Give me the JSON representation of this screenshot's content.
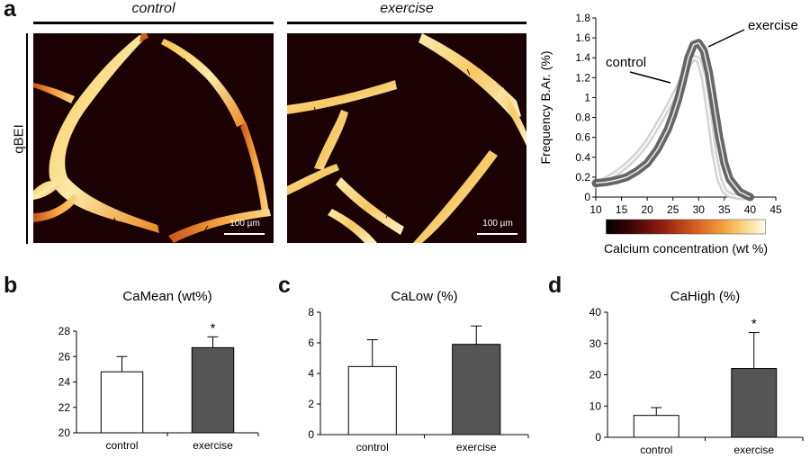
{
  "figure": {
    "panel_a": {
      "letter": "a",
      "row_label": "qBEI",
      "image_titles": [
        "control",
        "exercise"
      ],
      "scalebar_label": "100 µm"
    },
    "panel_b": {
      "letter": "b"
    },
    "panel_c": {
      "letter": "c"
    },
    "panel_d": {
      "letter": "d"
    }
  },
  "colors": {
    "control_bar": "#ffffff",
    "exercise_bar": "#555555",
    "bone_dark": "#1b0104"
  },
  "chart_data": [
    {
      "type": "line",
      "xlabel": "Calcium concentration (wt %)",
      "ylabel": "Frequency B.Ar. (%)",
      "xlim": [
        10,
        45
      ],
      "ylim": [
        0,
        1.8
      ],
      "x_ticks": [
        10,
        15,
        20,
        25,
        30,
        35,
        40,
        45
      ],
      "y_ticks": [
        0,
        0.2,
        0.4,
        0.6,
        0.8,
        1,
        1.2,
        1.4,
        1.6,
        1.8
      ],
      "annotations": [
        "control",
        "exercise"
      ],
      "x": [
        10,
        12,
        14,
        16,
        18,
        20,
        22,
        24,
        25,
        26,
        27,
        28,
        29,
        30,
        31,
        32,
        33,
        34,
        35,
        36,
        38,
        40
      ],
      "series": [
        {
          "name": "control",
          "values": [
            0.12,
            0.18,
            0.24,
            0.32,
            0.42,
            0.55,
            0.72,
            0.9,
            1.0,
            1.1,
            1.22,
            1.33,
            1.4,
            1.38,
            1.2,
            0.85,
            0.45,
            0.18,
            0.06,
            0.02,
            0.0,
            0.0
          ]
        },
        {
          "name": "exercise",
          "values": [
            0.14,
            0.15,
            0.17,
            0.2,
            0.26,
            0.34,
            0.48,
            0.68,
            0.82,
            0.98,
            1.18,
            1.4,
            1.53,
            1.55,
            1.47,
            1.25,
            0.92,
            0.6,
            0.34,
            0.18,
            0.05,
            0.0
          ]
        }
      ],
      "colorbar": {
        "ticks": [
          10,
          15,
          20,
          25,
          30,
          35,
          40,
          45
        ]
      }
    },
    {
      "type": "bar",
      "title": "CaMean (wt%)",
      "categories": [
        "control",
        "exercise"
      ],
      "values": [
        24.8,
        26.7
      ],
      "errors": [
        1.2,
        0.85
      ],
      "significance": [
        "",
        "*"
      ],
      "ylim": [
        20,
        28
      ],
      "y_ticks": [
        20,
        22,
        24,
        26,
        28
      ]
    },
    {
      "type": "bar",
      "title": "CaLow (%)",
      "categories": [
        "control",
        "exercise"
      ],
      "values": [
        4.45,
        5.9
      ],
      "errors": [
        1.75,
        1.2
      ],
      "significance": [
        "",
        ""
      ],
      "ylim": [
        0,
        8
      ],
      "y_ticks": [
        0,
        2,
        4,
        6,
        8
      ]
    },
    {
      "type": "bar",
      "title": "CaHigh (%)",
      "categories": [
        "control",
        "exercise"
      ],
      "values": [
        7,
        22
      ],
      "errors": [
        2.5,
        11.5
      ],
      "significance": [
        "",
        "*"
      ],
      "ylim": [
        0,
        40
      ],
      "y_ticks": [
        0,
        10,
        20,
        30,
        40
      ]
    }
  ]
}
